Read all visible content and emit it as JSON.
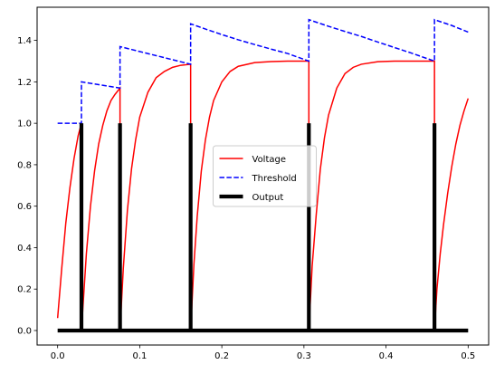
{
  "chart_data": {
    "type": "line",
    "xlim": [
      -0.025,
      0.525
    ],
    "ylim": [
      -0.07,
      1.56
    ],
    "grid": false,
    "legend_location": "center",
    "x_ticks": [
      0.0,
      0.1,
      0.2,
      0.3,
      0.4,
      0.5
    ],
    "x_tick_labels": [
      "0.0",
      "0.1",
      "0.2",
      "0.3",
      "0.4",
      "0.5"
    ],
    "y_ticks": [
      0.0,
      0.2,
      0.4,
      0.6,
      0.8,
      1.0,
      1.2,
      1.4
    ],
    "y_tick_labels": [
      "0.0",
      "0.2",
      "0.4",
      "0.6",
      "0.8",
      "1.0",
      "1.2",
      "1.4"
    ],
    "spike_times": [
      0.029,
      0.076,
      0.162,
      0.306,
      0.459
    ],
    "series": [
      {
        "name": "Voltage",
        "color": "#ff0000",
        "style": "solid",
        "points": [
          [
            0.0,
            0.06
          ],
          [
            0.005,
            0.3
          ],
          [
            0.01,
            0.52
          ],
          [
            0.015,
            0.69
          ],
          [
            0.02,
            0.83
          ],
          [
            0.025,
            0.94
          ],
          [
            0.029,
            1.0
          ],
          [
            0.029,
            0.0
          ],
          [
            0.035,
            0.37
          ],
          [
            0.04,
            0.6
          ],
          [
            0.045,
            0.77
          ],
          [
            0.05,
            0.9
          ],
          [
            0.055,
            0.99
          ],
          [
            0.06,
            1.06
          ],
          [
            0.065,
            1.11
          ],
          [
            0.07,
            1.14
          ],
          [
            0.076,
            1.17
          ],
          [
            0.076,
            0.0
          ],
          [
            0.08,
            0.3
          ],
          [
            0.085,
            0.58
          ],
          [
            0.09,
            0.78
          ],
          [
            0.095,
            0.92
          ],
          [
            0.1,
            1.03
          ],
          [
            0.11,
            1.15
          ],
          [
            0.12,
            1.22
          ],
          [
            0.13,
            1.25
          ],
          [
            0.14,
            1.27
          ],
          [
            0.15,
            1.28
          ],
          [
            0.162,
            1.285
          ],
          [
            0.162,
            0.0
          ],
          [
            0.166,
            0.32
          ],
          [
            0.17,
            0.55
          ],
          [
            0.175,
            0.77
          ],
          [
            0.18,
            0.92
          ],
          [
            0.185,
            1.03
          ],
          [
            0.19,
            1.11
          ],
          [
            0.2,
            1.2
          ],
          [
            0.21,
            1.25
          ],
          [
            0.22,
            1.275
          ],
          [
            0.24,
            1.293
          ],
          [
            0.26,
            1.298
          ],
          [
            0.28,
            1.3
          ],
          [
            0.306,
            1.3
          ],
          [
            0.306,
            0.0
          ],
          [
            0.31,
            0.31
          ],
          [
            0.315,
            0.56
          ],
          [
            0.32,
            0.78
          ],
          [
            0.325,
            0.93
          ],
          [
            0.33,
            1.04
          ],
          [
            0.34,
            1.17
          ],
          [
            0.35,
            1.24
          ],
          [
            0.36,
            1.27
          ],
          [
            0.37,
            1.285
          ],
          [
            0.39,
            1.297
          ],
          [
            0.41,
            1.3
          ],
          [
            0.43,
            1.3
          ],
          [
            0.459,
            1.3
          ],
          [
            0.459,
            0.0
          ],
          [
            0.462,
            0.2
          ],
          [
            0.466,
            0.37
          ],
          [
            0.47,
            0.51
          ],
          [
            0.475,
            0.66
          ],
          [
            0.48,
            0.79
          ],
          [
            0.485,
            0.9
          ],
          [
            0.49,
            0.99
          ],
          [
            0.495,
            1.06
          ],
          [
            0.5,
            1.12
          ]
        ]
      },
      {
        "name": "Threshold",
        "color": "#0000ff",
        "style": "dashed",
        "points": [
          [
            0.0,
            1.0
          ],
          [
            0.029,
            1.0
          ],
          [
            0.029,
            1.2
          ],
          [
            0.076,
            1.17
          ],
          [
            0.076,
            1.37
          ],
          [
            0.162,
            1.285
          ],
          [
            0.162,
            1.48
          ],
          [
            0.18,
            1.455
          ],
          [
            0.2,
            1.428
          ],
          [
            0.22,
            1.403
          ],
          [
            0.24,
            1.38
          ],
          [
            0.26,
            1.358
          ],
          [
            0.28,
            1.337
          ],
          [
            0.306,
            1.3
          ],
          [
            0.306,
            1.5
          ],
          [
            0.33,
            1.468
          ],
          [
            0.35,
            1.443
          ],
          [
            0.37,
            1.419
          ],
          [
            0.39,
            1.392
          ],
          [
            0.41,
            1.366
          ],
          [
            0.43,
            1.34
          ],
          [
            0.459,
            1.3
          ],
          [
            0.459,
            1.5
          ],
          [
            0.48,
            1.472
          ],
          [
            0.5,
            1.44
          ]
        ]
      },
      {
        "name": "Output",
        "color": "#000000",
        "style": "solid-thick",
        "points": [
          [
            0.0,
            0.0
          ],
          [
            0.029,
            0.0
          ],
          [
            0.029,
            1.0
          ],
          [
            0.029,
            0.0
          ],
          [
            0.076,
            0.0
          ],
          [
            0.076,
            1.0
          ],
          [
            0.076,
            0.0
          ],
          [
            0.162,
            0.0
          ],
          [
            0.162,
            1.0
          ],
          [
            0.162,
            0.0
          ],
          [
            0.306,
            0.0
          ],
          [
            0.306,
            1.0
          ],
          [
            0.306,
            0.0
          ],
          [
            0.459,
            0.0
          ],
          [
            0.459,
            1.0
          ],
          [
            0.459,
            0.0
          ],
          [
            0.5,
            0.0
          ]
        ]
      }
    ]
  }
}
